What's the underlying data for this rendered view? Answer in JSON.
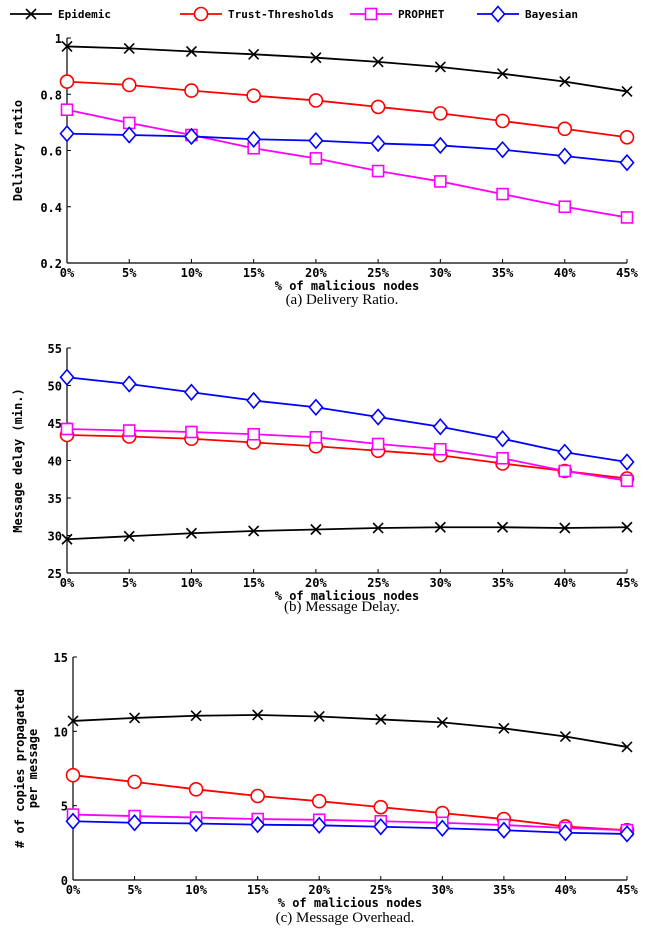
{
  "legend": {
    "placement": "top",
    "items": [
      {
        "label": "Epidemic",
        "color": "#000000",
        "marker": "x"
      },
      {
        "label": "Trust-Thresholds",
        "color": "#ff0000",
        "marker": "circle"
      },
      {
        "label": "PROPHET",
        "color": "#ff00ff",
        "marker": "square"
      },
      {
        "label": "Bayesian",
        "color": "#0000ff",
        "marker": "diamond"
      }
    ]
  },
  "chart_data": [
    {
      "type": "line",
      "caption": "(a) Delivery Ratio.",
      "xlabel": "% of malicious nodes",
      "ylabel": "Delivery ratio",
      "categories": [
        "0%",
        "5%",
        "10%",
        "15%",
        "20%",
        "25%",
        "30%",
        "35%",
        "40%",
        "45%"
      ],
      "ylim": [
        0.2,
        1
      ],
      "yticks": [
        0.2,
        0.4,
        0.6,
        0.8,
        1
      ],
      "ytick_labels": [
        "0.2",
        "0.4",
        "0.6",
        "0.8",
        "1"
      ],
      "grid": false,
      "series": [
        {
          "name": "Epidemic",
          "values": [
            0.97,
            0.963,
            0.952,
            0.942,
            0.93,
            0.915,
            0.897,
            0.873,
            0.845,
            0.81
          ]
        },
        {
          "name": "Trust-Thresholds",
          "values": [
            0.845,
            0.833,
            0.813,
            0.795,
            0.778,
            0.755,
            0.732,
            0.705,
            0.677,
            0.647
          ]
        },
        {
          "name": "PROPHET",
          "values": [
            0.745,
            0.698,
            0.655,
            0.608,
            0.572,
            0.527,
            0.49,
            0.445,
            0.4,
            0.362
          ]
        },
        {
          "name": "Bayesian",
          "values": [
            0.66,
            0.655,
            0.65,
            0.64,
            0.635,
            0.625,
            0.618,
            0.603,
            0.58,
            0.557
          ]
        }
      ]
    },
    {
      "type": "line",
      "caption": "(b) Message Delay.",
      "xlabel": "% of malicious nodes",
      "ylabel": "Message delay (min.)",
      "categories": [
        "0%",
        "5%",
        "10%",
        "15%",
        "20%",
        "25%",
        "30%",
        "35%",
        "40%",
        "45%"
      ],
      "ylim": [
        25,
        55
      ],
      "yticks": [
        25,
        30,
        35,
        40,
        45,
        50,
        55
      ],
      "ytick_labels": [
        "25",
        "30",
        "35",
        "40",
        "45",
        "50",
        "55"
      ],
      "grid": false,
      "series": [
        {
          "name": "Epidemic",
          "values": [
            29.5,
            29.9,
            30.3,
            30.6,
            30.8,
            31.0,
            31.1,
            31.1,
            31.0,
            31.1
          ]
        },
        {
          "name": "Trust-Thresholds",
          "values": [
            43.4,
            43.2,
            42.9,
            42.4,
            41.9,
            41.3,
            40.7,
            39.6,
            38.6,
            37.6
          ]
        },
        {
          "name": "PROPHET",
          "values": [
            44.2,
            44.0,
            43.8,
            43.5,
            43.1,
            42.2,
            41.5,
            40.3,
            38.6,
            37.3
          ]
        },
        {
          "name": "Bayesian",
          "values": [
            51.1,
            50.2,
            49.1,
            48.0,
            47.1,
            45.8,
            44.5,
            42.9,
            41.1,
            39.8
          ]
        }
      ]
    },
    {
      "type": "line",
      "caption": "(c) Message Overhead.",
      "xlabel": "% of malicious nodes",
      "ylabel": "# of copies propagated per message",
      "ylabel_lines": [
        "# of copies propagated",
        "per message"
      ],
      "categories": [
        "0%",
        "5%",
        "10%",
        "15%",
        "20%",
        "25%",
        "30%",
        "35%",
        "40%",
        "45%"
      ],
      "ylim": [
        0,
        15
      ],
      "yticks": [
        0,
        5,
        10,
        15
      ],
      "ytick_labels": [
        "0",
        "5",
        "10",
        "15"
      ],
      "grid": false,
      "series": [
        {
          "name": "Epidemic",
          "values": [
            10.7,
            10.9,
            11.05,
            11.1,
            11.0,
            10.8,
            10.6,
            10.2,
            9.65,
            8.95
          ]
        },
        {
          "name": "Trust-Thresholds",
          "values": [
            7.05,
            6.6,
            6.1,
            5.65,
            5.3,
            4.9,
            4.5,
            4.1,
            3.6,
            3.35
          ]
        },
        {
          "name": "PROPHET",
          "values": [
            4.4,
            4.3,
            4.2,
            4.1,
            4.05,
            3.95,
            3.85,
            3.7,
            3.5,
            3.35
          ]
        },
        {
          "name": "Bayesian",
          "values": [
            3.95,
            3.85,
            3.8,
            3.72,
            3.68,
            3.58,
            3.48,
            3.35,
            3.18,
            3.1
          ]
        }
      ]
    }
  ]
}
